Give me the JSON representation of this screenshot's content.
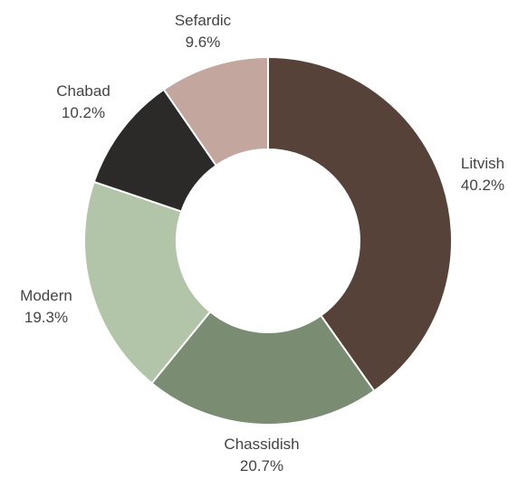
{
  "chart_data": {
    "type": "pie",
    "donut": true,
    "title": "",
    "slices": [
      {
        "label": "Litvish",
        "value_text": "40.2%",
        "value": 40.2,
        "color": "#574239"
      },
      {
        "label": "Chassidish",
        "value_text": "20.7%",
        "value": 20.7,
        "color": "#7a8c72"
      },
      {
        "label": "Modern",
        "value_text": "19.3%",
        "value": 19.3,
        "color": "#b2c5a8"
      },
      {
        "label": "Chabad",
        "value_text": "10.2%",
        "value": 10.2,
        "color": "#2b2a29"
      },
      {
        "label": "Sefardic",
        "value_text": "9.6%",
        "value": 9.6,
        "color": "#c3a69e"
      }
    ]
  }
}
